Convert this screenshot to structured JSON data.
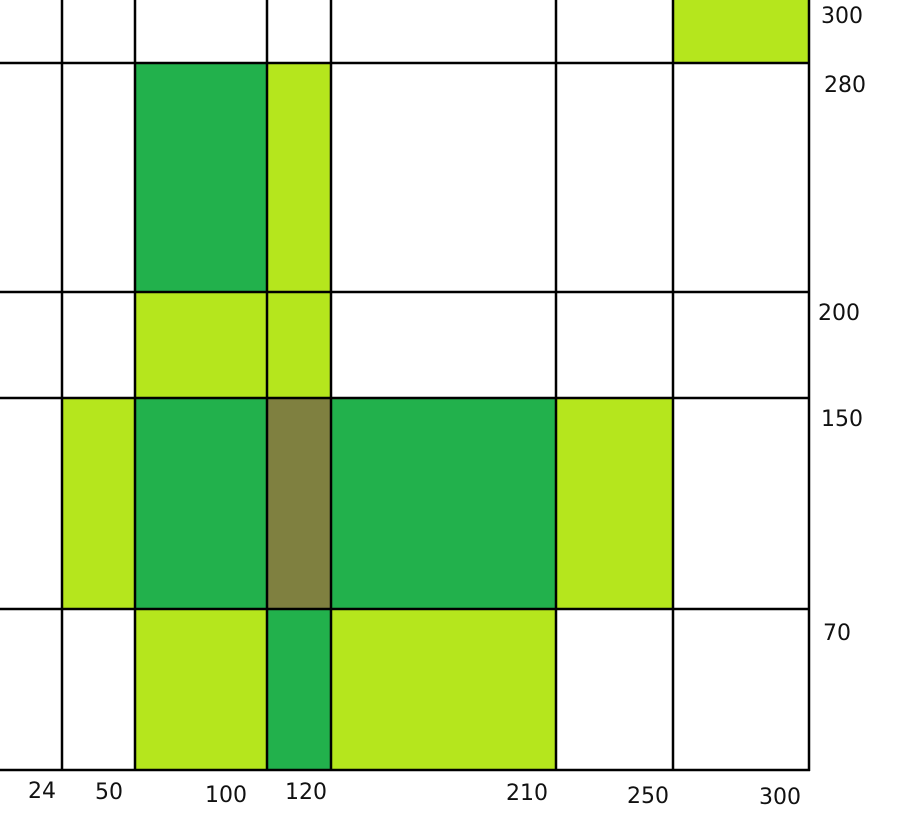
{
  "x_labels": [
    24,
    50,
    100,
    120,
    210,
    250,
    300
  ],
  "y_labels": [
    300,
    280,
    200,
    150,
    70
  ]
}
